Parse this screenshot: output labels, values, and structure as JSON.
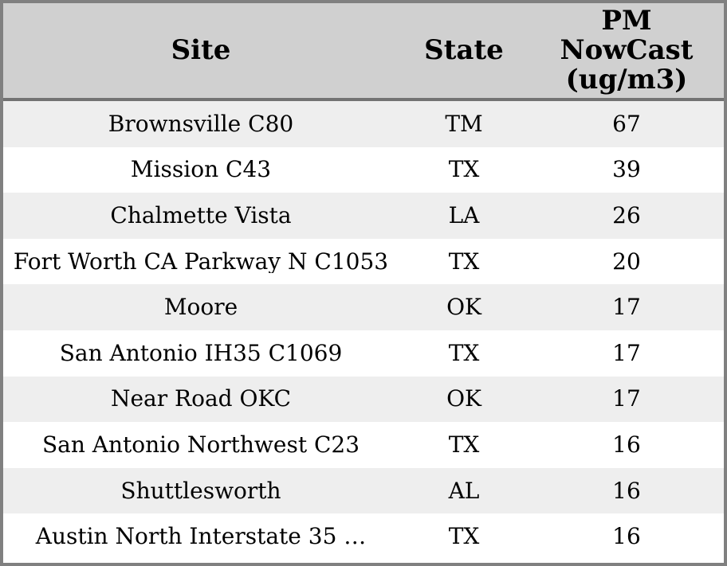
{
  "widget": {
    "name": "PM NowCast site readings table"
  },
  "colors": {
    "header_bg": "#d0d0d0",
    "row_alt_bg": "#eeeeee",
    "row_bg": "#ffffff",
    "outer_border": "#808080",
    "header_separator": "#737373",
    "text": "#000000"
  },
  "chart_data": {
    "type": "table",
    "title": "",
    "legend_position": "none",
    "grid": false,
    "columns": [
      {
        "id": "site",
        "label": "Site"
      },
      {
        "id": "state",
        "label": "State"
      },
      {
        "id": "pm",
        "label": "PM NowCast (ug/m3)"
      }
    ],
    "rows": [
      {
        "site": "Brownsville C80",
        "state": "TM",
        "pm": 67
      },
      {
        "site": "Mission C43",
        "state": "TX",
        "pm": 39
      },
      {
        "site": "Chalmette Vista",
        "state": "LA",
        "pm": 26
      },
      {
        "site": "Fort Worth CA Parkway N C1053",
        "state": "TX",
        "pm": 20
      },
      {
        "site": "Moore",
        "state": "OK",
        "pm": 17
      },
      {
        "site": "San Antonio IH35 C1069",
        "state": "TX",
        "pm": 17
      },
      {
        "site": "Near Road OKC",
        "state": "OK",
        "pm": 17
      },
      {
        "site": "San Antonio Northwest C23",
        "state": "TX",
        "pm": 16
      },
      {
        "site": "Shuttlesworth",
        "state": "AL",
        "pm": 16
      },
      {
        "site": "Austin North Interstate 35 …",
        "state": "TX",
        "pm": 16
      }
    ]
  }
}
